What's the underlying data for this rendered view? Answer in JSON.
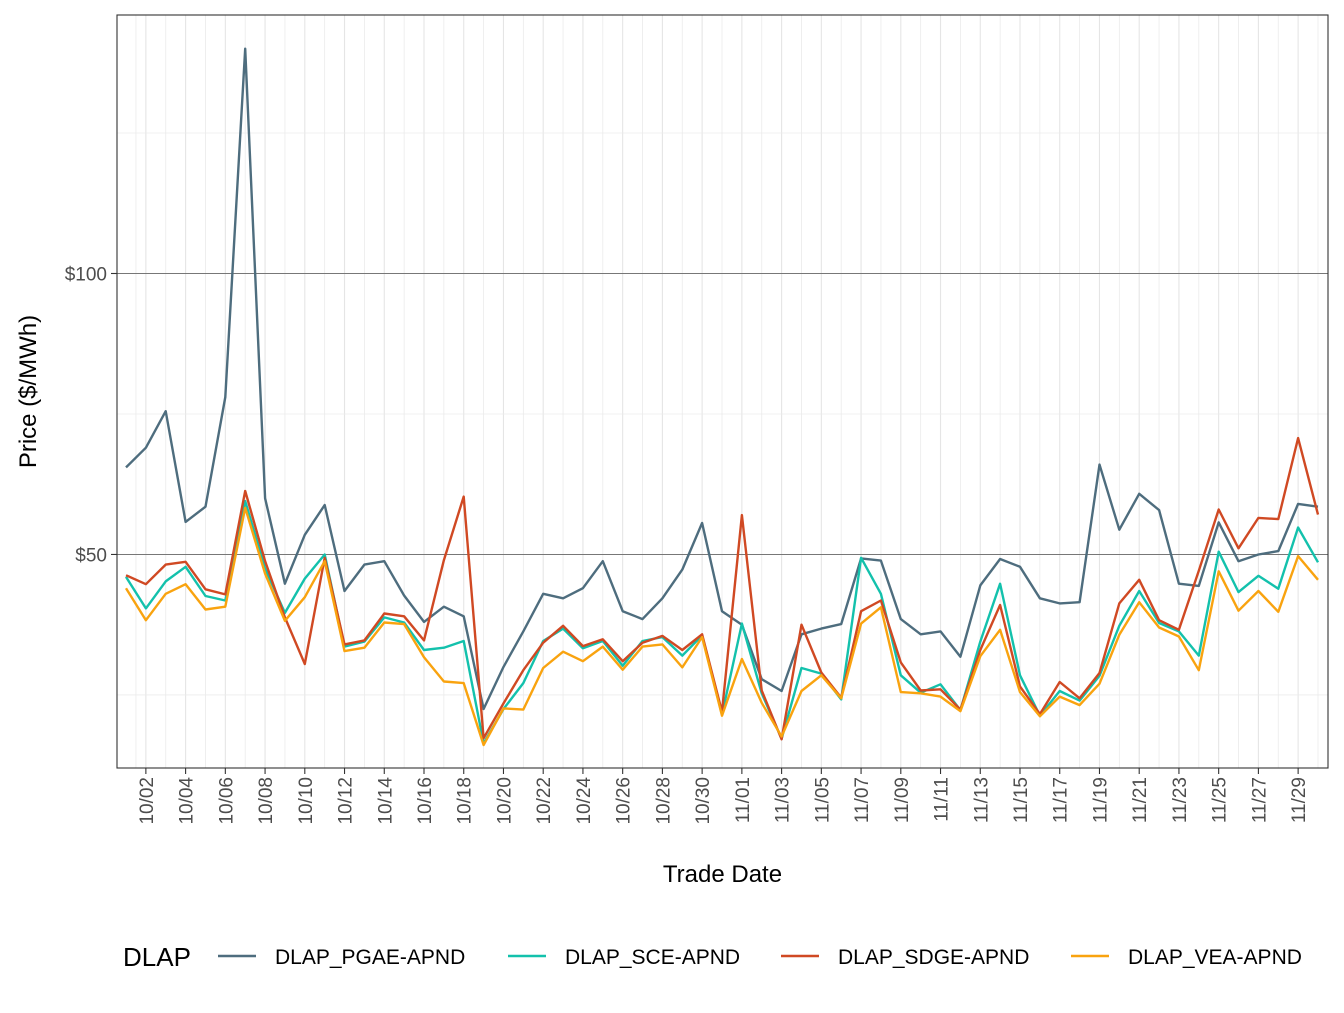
{
  "chart_data": {
    "type": "line",
    "xlabel": "Trade Date",
    "ylabel": "Price ($/MWh)",
    "ylim": [
      12,
      146
    ],
    "y_ticks": [
      50,
      100
    ],
    "y_tick_labels": [
      "$50",
      "$100"
    ],
    "y_minor_ticks": [
      25,
      75,
      125
    ],
    "x_tick_labels": [
      "10/02",
      "10/04",
      "10/06",
      "10/08",
      "10/10",
      "10/12",
      "10/14",
      "10/16",
      "10/18",
      "10/20",
      "10/22",
      "10/24",
      "10/26",
      "10/28",
      "10/30",
      "11/01",
      "11/03",
      "11/05",
      "11/07",
      "11/09",
      "11/11",
      "11/13",
      "11/15",
      "11/17",
      "11/19",
      "11/21",
      "11/23",
      "11/25",
      "11/27",
      "11/29"
    ],
    "x_dates": [
      "10/01",
      "10/02",
      "10/03",
      "10/04",
      "10/05",
      "10/06",
      "10/07",
      "10/08",
      "10/09",
      "10/10",
      "10/11",
      "10/12",
      "10/13",
      "10/14",
      "10/15",
      "10/16",
      "10/17",
      "10/18",
      "10/19",
      "10/20",
      "10/21",
      "10/22",
      "10/23",
      "10/24",
      "10/25",
      "10/26",
      "10/27",
      "10/28",
      "10/29",
      "10/30",
      "10/31",
      "11/01",
      "11/02",
      "11/03",
      "11/04",
      "11/05",
      "11/06",
      "11/07",
      "11/08",
      "11/09",
      "11/10",
      "11/11",
      "11/12",
      "11/13",
      "11/14",
      "11/15",
      "11/16",
      "11/17",
      "11/18",
      "11/19",
      "11/20",
      "11/21",
      "11/22",
      "11/23",
      "11/24",
      "11/25",
      "11/26",
      "11/27",
      "11/28",
      "11/29",
      "11/30"
    ],
    "grid": true,
    "legend_title": "DLAP",
    "legend_position": "bottom",
    "series": [
      {
        "name": "DLAP_PGAE-APND",
        "color": "#4e6d7e",
        "values": [
          65.5,
          69,
          75.5,
          55.8,
          58.5,
          78,
          140,
          60,
          44.8,
          53.5,
          58.8,
          43.5,
          48.2,
          48.8,
          42.7,
          38,
          40.7,
          39,
          22.5,
          30,
          36.3,
          43,
          42.2,
          44,
          48.8,
          39.9,
          38.5,
          42.2,
          47.3,
          55.6,
          39.9,
          37.5,
          27.8,
          25.7,
          35.8,
          36.8,
          37.6,
          49.3,
          48.9,
          38.5,
          35.8,
          36.3,
          31.8,
          44.5,
          49.2,
          47.8,
          42.2,
          41.3,
          41.5,
          66,
          54.4,
          60.8,
          57.9,
          44.8,
          44.4,
          55.7,
          48.8,
          50,
          50.6,
          59,
          58.5
        ]
      },
      {
        "name": "DLAP_SCE-APND",
        "color": "#13c1ac",
        "values": [
          46,
          40.4,
          45.2,
          47.8,
          42.6,
          41.8,
          59.5,
          47.5,
          39.6,
          45.7,
          50,
          33.6,
          34.5,
          38.8,
          37.9,
          33,
          33.4,
          34.6,
          16.4,
          22.5,
          27.1,
          34.6,
          36.8,
          33.3,
          34.6,
          30.2,
          34.6,
          35.3,
          32,
          35.6,
          21.5,
          37.7,
          25.3,
          17.2,
          29.8,
          28.8,
          24.2,
          49.4,
          43,
          28.5,
          25.4,
          26.9,
          22.3,
          34.5,
          44.8,
          28.5,
          21.3,
          25.7,
          24,
          28.4,
          37.3,
          43.5,
          37.8,
          36.3,
          32,
          50.5,
          43.3,
          46.2,
          43.9,
          54.8,
          48.6
        ]
      },
      {
        "name": "DLAP_SDGE-APND",
        "color": "#d04923",
        "values": [
          46.3,
          44.7,
          48.2,
          48.7,
          43.8,
          42.9,
          61.3,
          48.8,
          38.8,
          30.5,
          49.4,
          34,
          34.7,
          39.5,
          39,
          34.7,
          49,
          60.3,
          17.3,
          23.5,
          29.4,
          34.3,
          37.3,
          33.7,
          34.9,
          31,
          34.3,
          35.5,
          33,
          35.8,
          22,
          57,
          25.8,
          17.1,
          37.5,
          29,
          24.5,
          39.9,
          41.8,
          30.8,
          25.8,
          26,
          22.4,
          33,
          41,
          26.5,
          21.6,
          27.3,
          24.4,
          28.9,
          41.3,
          45.5,
          38.3,
          36.6,
          47.1,
          58,
          51.1,
          56.5,
          56.3,
          70.7,
          57.1
        ]
      },
      {
        "name": "DLAP_VEA-APND",
        "color": "#f9a30f",
        "values": [
          44,
          38.3,
          43,
          44.7,
          40.2,
          40.7,
          58.3,
          46.6,
          38.2,
          42.4,
          48.8,
          32.8,
          33.4,
          37.9,
          37.6,
          31.7,
          27.4,
          27.1,
          16.1,
          22.6,
          22.4,
          29.8,
          32.7,
          31,
          33.6,
          29.5,
          33.6,
          34,
          29.9,
          35.3,
          21.3,
          31.4,
          23.6,
          17.6,
          25.7,
          28.5,
          24.4,
          37.7,
          40.6,
          25.5,
          25.3,
          24.7,
          22.1,
          31.9,
          36.6,
          25.5,
          21.2,
          24.7,
          23.2,
          27,
          35.7,
          41.5,
          37,
          35.4,
          29.4,
          47,
          40,
          43.5,
          39.8,
          49.7,
          45.5
        ]
      }
    ]
  }
}
